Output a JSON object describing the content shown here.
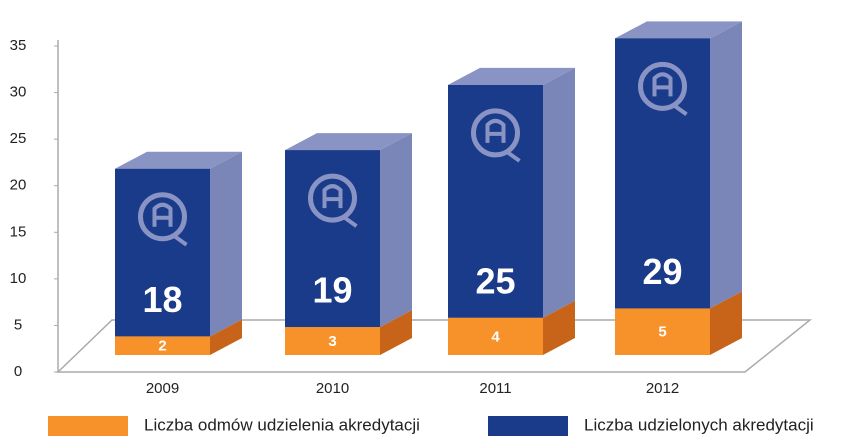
{
  "chart_data": {
    "type": "bar",
    "stacked": true,
    "categories": [
      "2009",
      "2010",
      "2011",
      "2012"
    ],
    "series": [
      {
        "name": "Liczba odmów udzielenia akredytacji",
        "color": "#f7922a",
        "values": [
          2,
          3,
          4,
          5
        ]
      },
      {
        "name": "Liczba udzielonych akredytacji",
        "color": "#1a3a8a",
        "values": [
          18,
          19,
          25,
          29
        ]
      }
    ],
    "ylim": [
      0,
      35
    ],
    "yticks": [
      0,
      5,
      10,
      15,
      20,
      25,
      30,
      35
    ]
  }
}
